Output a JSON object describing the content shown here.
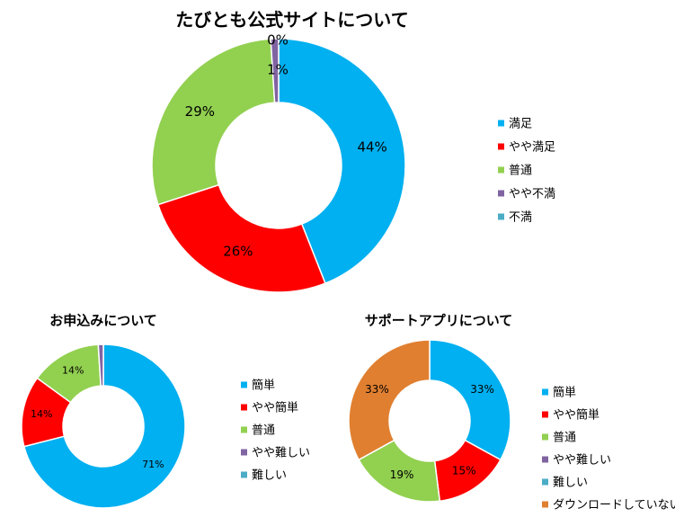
{
  "chart_data": [
    {
      "type": "donut",
      "title": "たびとも公式サイトについて",
      "categories": [
        "満足",
        "やや満足",
        "普通",
        "やや不満",
        "不満"
      ],
      "values": [
        44,
        26,
        29,
        1,
        0
      ],
      "labels": [
        "44%",
        "26%",
        "29%",
        "1%",
        "0%"
      ],
      "colors": [
        "#00B0F0",
        "#FF0000",
        "#92D050",
        "#8064A2",
        "#4BACC6"
      ],
      "legend_position": "right"
    },
    {
      "type": "donut",
      "title": "お申込みについて",
      "categories": [
        "簡単",
        "やや簡単",
        "普通",
        "やや難しい",
        "難しい"
      ],
      "values": [
        71,
        14,
        14,
        1,
        0
      ],
      "labels": [
        "71%",
        "14%",
        "14%",
        "",
        ""
      ],
      "colors": [
        "#00B0F0",
        "#FF0000",
        "#92D050",
        "#8064A2",
        "#4BACC6"
      ],
      "legend_position": "right"
    },
    {
      "type": "donut",
      "title": "サポートアプリについて",
      "categories": [
        "簡単",
        "やや簡単",
        "普通",
        "やや難しい",
        "難しい",
        "ダウンロードしていない"
      ],
      "values": [
        33,
        15,
        19,
        0,
        0,
        33
      ],
      "labels": [
        "33%",
        "15%",
        "19%",
        "",
        "",
        "33%"
      ],
      "colors": [
        "#00B0F0",
        "#FF0000",
        "#92D050",
        "#8064A2",
        "#4BACC6",
        "#E07F30"
      ],
      "legend_position": "right"
    }
  ]
}
